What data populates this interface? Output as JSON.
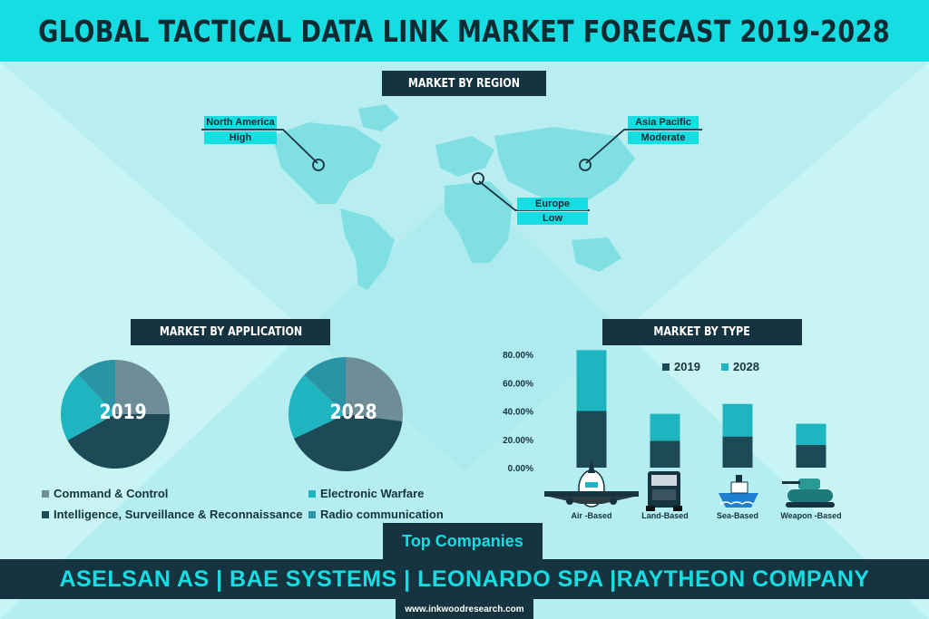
{
  "title": "GLOBAL TACTICAL DATA LINK MARKET FORECAST 2019-2028",
  "colors": {
    "cyan": "#16dde2",
    "navy": "#163340",
    "slate": "#6f8d96",
    "dark_teal": "#1e4a57",
    "teal": "#1fb5c0",
    "mid_teal": "#2a93a6",
    "background": "#c9f4f4"
  },
  "region_section": {
    "header": "MARKET BY REGION",
    "regions": [
      {
        "name": "North America",
        "level": "High"
      },
      {
        "name": "Asia Pacific",
        "level": "Moderate"
      },
      {
        "name": "Europe",
        "level": "Low"
      }
    ]
  },
  "application_section": {
    "header": "MARKET BY APPLICATION",
    "legend": [
      {
        "label": "Command & Control",
        "color": "#6f8d96"
      },
      {
        "label": "Intelligence, Surveillance & Reconnaissance",
        "color": "#1e4a57"
      },
      {
        "label": "Electronic Warfare",
        "color": "#1fb5c0"
      },
      {
        "label": "Radio communication",
        "color": "#2a93a6"
      }
    ]
  },
  "type_section": {
    "header": "MARKET BY TYPE",
    "icons": [
      "airplane-icon",
      "truck-icon",
      "ship-icon",
      "tank-icon"
    ]
  },
  "chart_data": [
    {
      "type": "pie",
      "center_label": "2019",
      "categories": [
        "Command & Control",
        "Intelligence, Surveillance & Reconnaissance",
        "Electronic Warfare",
        "Radio communication"
      ],
      "values": [
        25,
        42,
        21,
        12
      ]
    },
    {
      "type": "pie",
      "center_label": "2028",
      "categories": [
        "Command & Control",
        "Intelligence, Surveillance & Reconnaissance",
        "Electronic Warfare",
        "Radio communication"
      ],
      "values": [
        27,
        41,
        19,
        13
      ]
    },
    {
      "type": "bar",
      "stacked": true,
      "categories": [
        "Air -Based",
        "Land-Based",
        "Sea-Based",
        "Weapon -Based"
      ],
      "series": [
        {
          "name": "2019",
          "values": [
            40.0,
            19.0,
            22.0,
            16.0
          ],
          "color": "#1e4a57"
        },
        {
          "name": "2028",
          "values": [
            43.0,
            19.0,
            23.0,
            15.0
          ],
          "color": "#1fb5c0"
        }
      ],
      "yticks": [
        "0.00%",
        "20.00%",
        "40.00%",
        "60.00%",
        "80.00%"
      ],
      "ylim": [
        0,
        85
      ],
      "legend": "top-right"
    }
  ],
  "companies": {
    "header": "Top Companies",
    "list": "ASELSAN AS | BAE SYSTEMS | LEONARDO SPA |RAYTHEON COMPANY"
  },
  "footer": "www.inkwoodresearch.com"
}
